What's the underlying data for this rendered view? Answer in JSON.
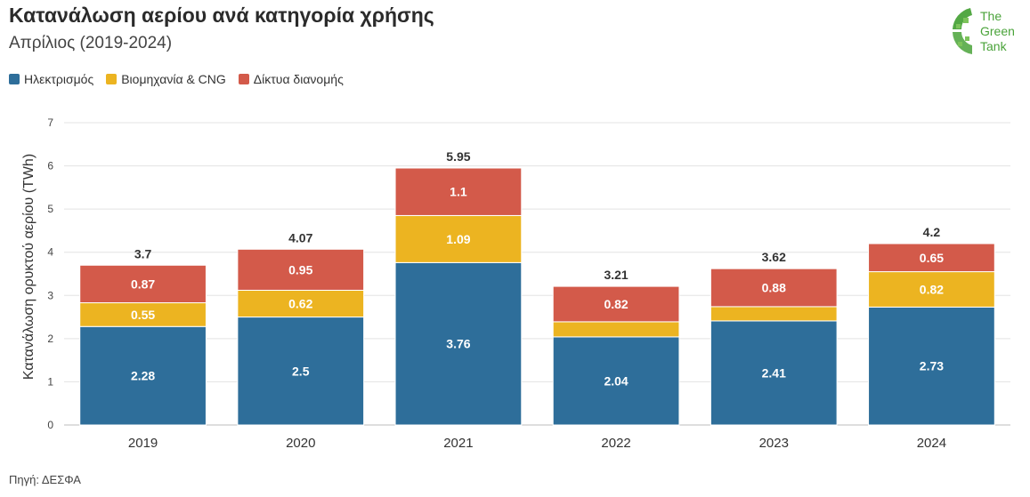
{
  "header": {
    "title": "Κατανάλωση αερίου ανά κατηγορία χρήσης",
    "subtitle": "Απρίλιος (2019-2024)"
  },
  "source": "Πηγή: ΔΕΣΦΑ",
  "logo": {
    "line1": "The",
    "line2": "Green",
    "line3": "Tank",
    "color": "#4aa33a"
  },
  "chart_data": {
    "type": "bar",
    "stacked": true,
    "categories": [
      "2019",
      "2020",
      "2021",
      "2022",
      "2023",
      "2024"
    ],
    "series": [
      {
        "name": "Ηλεκτρισμός",
        "color": "#2e6e9a",
        "values": [
          2.28,
          2.5,
          3.76,
          2.04,
          2.41,
          2.73
        ],
        "labels": [
          "2.28",
          "2.5",
          "3.76",
          "2.04",
          "2.41",
          "2.73"
        ]
      },
      {
        "name": "Βιομηχανία & CNG",
        "color": "#ecb421",
        "values": [
          0.55,
          0.62,
          1.09,
          0.35,
          0.33,
          0.82
        ],
        "labels": [
          "0.55",
          "0.62",
          "1.09",
          "",
          "",
          "0.82"
        ]
      },
      {
        "name": "Δίκτυα διανομής",
        "color": "#d35a4a",
        "values": [
          0.87,
          0.95,
          1.1,
          0.82,
          0.88,
          0.65
        ],
        "labels": [
          "0.87",
          "0.95",
          "1.1",
          "0.82",
          "0.88",
          "0.65"
        ]
      }
    ],
    "totals": [
      "3.7",
      "4.07",
      "5.95",
      "3.21",
      "3.62",
      "4.2"
    ],
    "ylabel": "Κατανάλωση ορυκτού αερίου (TWh)",
    "xlabel": "",
    "ylim": [
      0,
      7
    ],
    "yticks": [
      "0",
      "1",
      "2",
      "3",
      "4",
      "5",
      "6",
      "7"
    ],
    "grid": true,
    "legend_position": "top-left"
  }
}
